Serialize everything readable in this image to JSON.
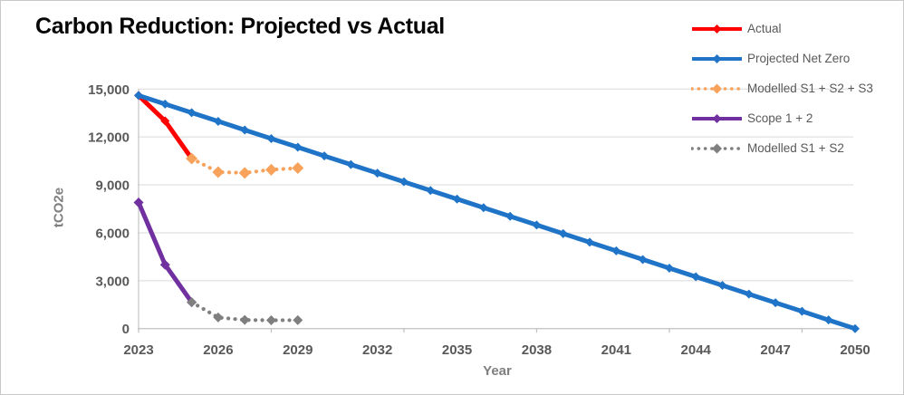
{
  "title": "Carbon Reduction: Projected vs Actual",
  "colors": {
    "actual_red": "#FF0000",
    "projected_blue": "#1F74C8",
    "modelled_orange": "#F9A25C",
    "scope_purple": "#7030A0",
    "modelled_gray": "#7F7F7F",
    "tick_text": "#595959",
    "axis_title_text": "#7F7F7F",
    "gridline": "#D9D9D9",
    "axis_line": "#C9C9C9",
    "tick_mark": "#BFBFBF",
    "title_text": "#060606"
  },
  "legend": {
    "position": "top-right",
    "items": [
      {
        "label": "Actual",
        "color": "#FF0000",
        "style": "solid"
      },
      {
        "label": "Projected Net Zero",
        "color": "#1F74C8",
        "style": "solid"
      },
      {
        "label": "Modelled S1 + S2 + S3",
        "color": "#F9A25C",
        "style": "dotted"
      },
      {
        "label": "Scope 1 + 2",
        "color": "#7030A0",
        "style": "solid"
      },
      {
        "label": "Modelled S1 + S2",
        "color": "#7F7F7F",
        "style": "dotted"
      }
    ]
  },
  "chart_data": {
    "type": "line",
    "title": "Carbon Reduction: Projected vs Actual",
    "xlabel": "Year",
    "ylabel": "tCO2e",
    "xlim": [
      2023,
      2050
    ],
    "ylim": [
      0,
      15000
    ],
    "grid": true,
    "legend_position": "top-right",
    "x_ticks": [
      2023,
      2026,
      2029,
      2032,
      2035,
      2038,
      2041,
      2044,
      2047,
      2050
    ],
    "axis_tick_mark_years": [
      2023,
      2028,
      2033,
      2038,
      2043,
      2048
    ],
    "y_ticks": [
      {
        "value": 0,
        "label": "0"
      },
      {
        "value": 3000,
        "label": "3,000"
      },
      {
        "value": 6000,
        "label": "6,000"
      },
      {
        "value": 9000,
        "label": "9,000"
      },
      {
        "value": 12000,
        "label": "12,000"
      },
      {
        "value": 15000,
        "label": "15,000"
      }
    ],
    "series": [
      {
        "name": "Actual",
        "color": "#FF0000",
        "line_style": "solid",
        "marker": "diamond",
        "marker_size": 5,
        "points": [
          [
            2023,
            14600
          ],
          [
            2024,
            13000
          ],
          [
            2025,
            10650
          ]
        ]
      },
      {
        "name": "Projected Net Zero",
        "color": "#1F74C8",
        "line_style": "solid",
        "marker": "diamond",
        "marker_size": 5,
        "points": [
          [
            2023,
            14600
          ],
          [
            2024,
            14059
          ],
          [
            2025,
            13519
          ],
          [
            2026,
            12978
          ],
          [
            2027,
            12437
          ],
          [
            2028,
            11896
          ],
          [
            2029,
            11356
          ],
          [
            2030,
            10815
          ],
          [
            2031,
            10274
          ],
          [
            2032,
            9733
          ],
          [
            2033,
            9193
          ],
          [
            2034,
            8652
          ],
          [
            2035,
            8111
          ],
          [
            2036,
            7570
          ],
          [
            2037,
            7030
          ],
          [
            2038,
            6489
          ],
          [
            2039,
            5948
          ],
          [
            2040,
            5407
          ],
          [
            2041,
            4867
          ],
          [
            2042,
            4326
          ],
          [
            2043,
            3785
          ],
          [
            2044,
            3244
          ],
          [
            2045,
            2704
          ],
          [
            2046,
            2163
          ],
          [
            2047,
            1622
          ],
          [
            2048,
            1081
          ],
          [
            2049,
            541
          ],
          [
            2050,
            0
          ]
        ]
      },
      {
        "name": "Modelled S1 + S2 + S3",
        "color": "#F9A25C",
        "line_style": "dotted",
        "marker": "diamond",
        "marker_size": 6.5,
        "points": [
          [
            2025,
            10650
          ],
          [
            2026,
            9800
          ],
          [
            2027,
            9750
          ],
          [
            2028,
            9950
          ],
          [
            2029,
            10050
          ]
        ]
      },
      {
        "name": "Scope 1 + 2",
        "color": "#7030A0",
        "line_style": "solid",
        "marker": "diamond",
        "marker_size": 5.5,
        "points": [
          [
            2023,
            7900
          ],
          [
            2024,
            4000
          ],
          [
            2025,
            1650
          ]
        ]
      },
      {
        "name": "Modelled S1 + S2",
        "color": "#7F7F7F",
        "line_style": "dotted",
        "marker": "diamond",
        "marker_size": 5.5,
        "points": [
          [
            2025,
            1650
          ],
          [
            2026,
            700
          ],
          [
            2027,
            540
          ],
          [
            2028,
            520
          ],
          [
            2029,
            530
          ]
        ]
      }
    ]
  }
}
